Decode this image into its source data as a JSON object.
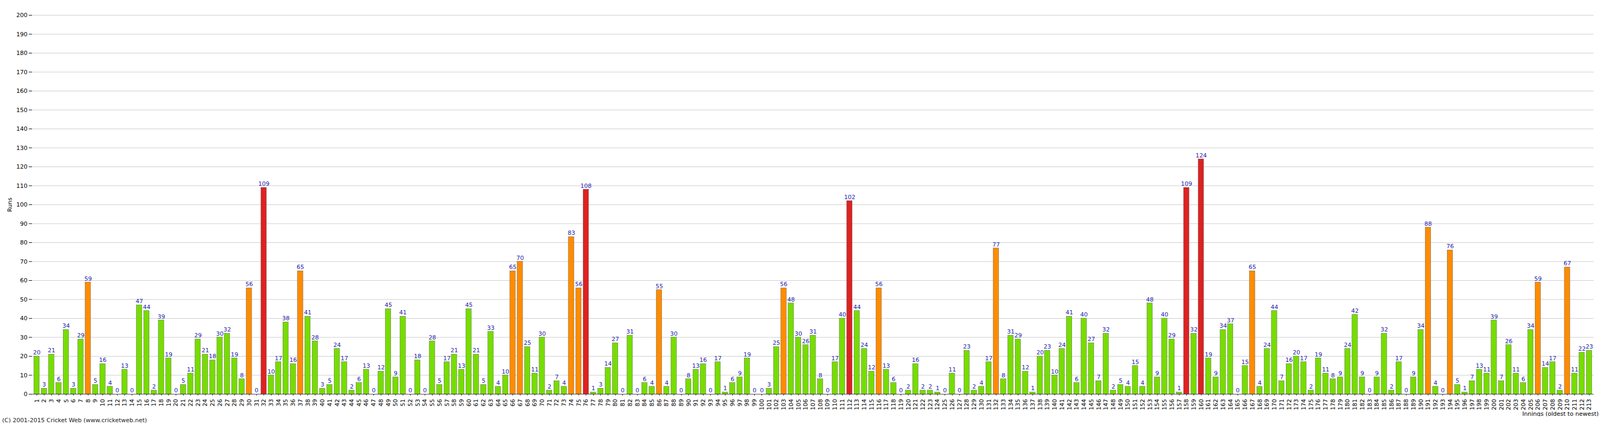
{
  "chart_data": {
    "type": "bar",
    "y_label": "Runs",
    "x_label": "Innings (oldest to newest)",
    "caption": "(C) 2001-2015 Cricket Web (www.cricketweb.net)",
    "categories": [
      "1",
      "2",
      "3",
      "4",
      "5",
      "6",
      "7",
      "8",
      "9",
      "10",
      "11",
      "12",
      "13",
      "14",
      "15",
      "16",
      "17",
      "18",
      "19",
      "20",
      "21",
      "22",
      "23",
      "24",
      "25",
      "26",
      "27",
      "28",
      "29",
      "30",
      "31",
      "32",
      "33",
      "34",
      "35",
      "36",
      "37",
      "38",
      "39",
      "40",
      "41",
      "42",
      "43",
      "44",
      "45",
      "46",
      "47",
      "48",
      "49",
      "50",
      "51",
      "52",
      "53",
      "54",
      "55",
      "56",
      "57",
      "58",
      "59",
      "60",
      "61",
      "62",
      "63",
      "64",
      "65",
      "66",
      "67",
      "68",
      "69",
      "70",
      "71",
      "72",
      "73",
      "74",
      "75",
      "76",
      "77",
      "78",
      "79",
      "80",
      "81",
      "82",
      "83",
      "84",
      "85",
      "86",
      "87",
      "88",
      "89",
      "90",
      "91",
      "92",
      "93",
      "94",
      "95",
      "96",
      "97",
      "98",
      "99",
      "100",
      "101",
      "102",
      "103",
      "104",
      "105",
      "106",
      "107",
      "108",
      "109",
      "110",
      "111",
      "112",
      "113",
      "114",
      "115",
      "116",
      "117",
      "118",
      "119",
      "120",
      "121",
      "122",
      "123",
      "124",
      "125",
      "126",
      "127",
      "128",
      "129",
      "130",
      "131",
      "132",
      "133",
      "134",
      "135",
      "136",
      "137",
      "138",
      "139",
      "140",
      "141",
      "142",
      "143",
      "144",
      "145",
      "146",
      "147",
      "148",
      "149",
      "150",
      "151",
      "152",
      "153",
      "154",
      "155",
      "156",
      "157",
      "158",
      "159",
      "160",
      "161",
      "162",
      "163",
      "164",
      "165",
      "166",
      "167",
      "168",
      "169",
      "170",
      "171",
      "172",
      "173",
      "174",
      "175",
      "176",
      "177",
      "178",
      "179",
      "180",
      "181",
      "182",
      "183",
      "184",
      "185",
      "186",
      "187",
      "188",
      "189",
      "190",
      "191",
      "192",
      "193",
      "194",
      "195",
      "196",
      "197",
      "198",
      "199",
      "200",
      "201",
      "202",
      "203",
      "204",
      "205",
      "206",
      "207",
      "208",
      "209",
      "210",
      "211",
      "212",
      "213"
    ],
    "values": [
      20,
      3,
      21,
      6,
      34,
      3,
      29,
      59,
      5,
      16,
      4,
      0,
      13,
      0,
      47,
      44,
      2,
      39,
      19,
      0,
      5,
      11,
      29,
      21,
      18,
      30,
      32,
      19,
      8,
      56,
      0,
      109,
      10,
      17,
      38,
      16,
      65,
      41,
      28,
      3,
      5,
      24,
      17,
      2,
      6,
      13,
      0,
      12,
      45,
      9,
      41,
      0,
      18,
      0,
      28,
      5,
      17,
      21,
      13,
      45,
      21,
      5,
      33,
      4,
      10,
      65,
      70,
      25,
      11,
      30,
      2,
      7,
      4,
      83,
      56,
      108,
      1,
      3,
      14,
      27,
      0,
      31,
      0,
      6,
      4,
      55,
      4,
      30,
      0,
      8,
      13,
      16,
      0,
      17,
      1,
      6,
      9,
      19,
      0,
      0,
      3,
      25,
      56,
      48,
      30,
      26,
      31,
      8,
      0,
      17,
      40,
      102,
      44,
      24,
      12,
      56,
      13,
      6,
      0,
      2,
      16,
      2,
      2,
      1,
      0,
      11,
      0,
      23,
      2,
      4,
      17,
      77,
      8,
      31,
      29,
      12,
      1,
      20,
      23,
      10,
      24,
      41,
      6,
      40,
      27,
      7,
      32,
      2,
      5,
      4,
      15,
      4,
      48,
      9,
      40,
      29,
      1,
      109,
      32,
      124,
      19,
      9,
      34,
      37,
      0,
      15,
      65,
      4,
      24,
      44,
      7,
      16,
      20,
      17,
      2,
      19,
      11,
      8,
      9,
      24,
      42,
      9,
      0,
      9,
      32,
      2,
      17,
      0,
      9,
      34,
      88,
      4,
      0,
      76,
      5,
      1,
      7,
      13,
      11,
      39,
      7,
      26,
      11,
      6,
      34,
      59,
      14,
      17,
      2,
      67,
      11,
      22,
      23
    ],
    "colors": [
      "#77dd00",
      "#77dd00",
      "#77dd00",
      "#77dd00",
      "#77dd00",
      "#77dd00",
      "#77dd00",
      "#ff8c00",
      "#77dd00",
      "#77dd00",
      "#77dd00",
      "#77dd00",
      "#77dd00",
      "#77dd00",
      "#77dd00",
      "#77dd00",
      "#77dd00",
      "#77dd00",
      "#77dd00",
      "#77dd00",
      "#77dd00",
      "#77dd00",
      "#77dd00",
      "#77dd00",
      "#77dd00",
      "#77dd00",
      "#77dd00",
      "#77dd00",
      "#77dd00",
      "#ff8c00",
      "#77dd00",
      "#dd2222",
      "#77dd00",
      "#77dd00",
      "#77dd00",
      "#77dd00",
      "#ff8c00",
      "#77dd00",
      "#77dd00",
      "#77dd00",
      "#77dd00",
      "#77dd00",
      "#77dd00",
      "#77dd00",
      "#77dd00",
      "#77dd00",
      "#77dd00",
      "#77dd00",
      "#77dd00",
      "#77dd00",
      "#77dd00",
      "#77dd00",
      "#77dd00",
      "#77dd00",
      "#77dd00",
      "#77dd00",
      "#77dd00",
      "#77dd00",
      "#77dd00",
      "#77dd00",
      "#77dd00",
      "#77dd00",
      "#77dd00",
      "#77dd00",
      "#77dd00",
      "#ff8c00",
      "#ff8c00",
      "#77dd00",
      "#77dd00",
      "#77dd00",
      "#77dd00",
      "#77dd00",
      "#77dd00",
      "#ff8c00",
      "#ff8c00",
      "#dd2222",
      "#77dd00",
      "#77dd00",
      "#77dd00",
      "#77dd00",
      "#77dd00",
      "#77dd00",
      "#77dd00",
      "#77dd00",
      "#77dd00",
      "#ff8c00",
      "#77dd00",
      "#77dd00",
      "#77dd00",
      "#77dd00",
      "#77dd00",
      "#77dd00",
      "#77dd00",
      "#77dd00",
      "#77dd00",
      "#77dd00",
      "#77dd00",
      "#77dd00",
      "#77dd00",
      "#77dd00",
      "#77dd00",
      "#77dd00",
      "#ff8c00",
      "#77dd00",
      "#77dd00",
      "#77dd00",
      "#77dd00",
      "#77dd00",
      "#77dd00",
      "#77dd00",
      "#77dd00",
      "#dd2222",
      "#77dd00",
      "#77dd00",
      "#77dd00",
      "#ff8c00",
      "#77dd00",
      "#77dd00",
      "#77dd00",
      "#77dd00",
      "#77dd00",
      "#77dd00",
      "#77dd00",
      "#77dd00",
      "#77dd00",
      "#77dd00",
      "#77dd00",
      "#77dd00",
      "#77dd00",
      "#77dd00",
      "#77dd00",
      "#ff8c00",
      "#77dd00",
      "#77dd00",
      "#77dd00",
      "#77dd00",
      "#77dd00",
      "#77dd00",
      "#77dd00",
      "#77dd00",
      "#77dd00",
      "#77dd00",
      "#77dd00",
      "#77dd00",
      "#77dd00",
      "#77dd00",
      "#77dd00",
      "#77dd00",
      "#77dd00",
      "#77dd00",
      "#77dd00",
      "#77dd00",
      "#77dd00",
      "#77dd00",
      "#77dd00",
      "#77dd00",
      "#77dd00",
      "#dd2222",
      "#77dd00",
      "#dd2222",
      "#77dd00",
      "#77dd00",
      "#77dd00",
      "#77dd00",
      "#77dd00",
      "#77dd00",
      "#ff8c00",
      "#77dd00",
      "#77dd00",
      "#77dd00",
      "#77dd00",
      "#77dd00",
      "#77dd00",
      "#77dd00",
      "#77dd00",
      "#77dd00",
      "#77dd00",
      "#77dd00",
      "#77dd00",
      "#77dd00",
      "#77dd00",
      "#77dd00",
      "#77dd00",
      "#77dd00",
      "#77dd00",
      "#77dd00",
      "#77dd00",
      "#77dd00",
      "#77dd00",
      "#77dd00",
      "#ff8c00",
      "#77dd00",
      "#77dd00",
      "#ff8c00",
      "#77dd00",
      "#77dd00",
      "#77dd00",
      "#77dd00",
      "#77dd00",
      "#77dd00",
      "#77dd00",
      "#77dd00",
      "#77dd00",
      "#77dd00",
      "#77dd00",
      "#ff8c00",
      "#77dd00",
      "#77dd00",
      "#77dd00",
      "#ff8c00",
      "#77dd00",
      "#77dd00",
      "#77dd00"
    ],
    "ylim": [
      0,
      200
    ],
    "yticks": [
      0,
      10,
      20,
      30,
      40,
      50,
      60,
      70,
      80,
      90,
      100,
      110,
      120,
      130,
      140,
      150,
      160,
      170,
      180,
      190,
      200
    ],
    "grid": true,
    "data_labels": true
  }
}
